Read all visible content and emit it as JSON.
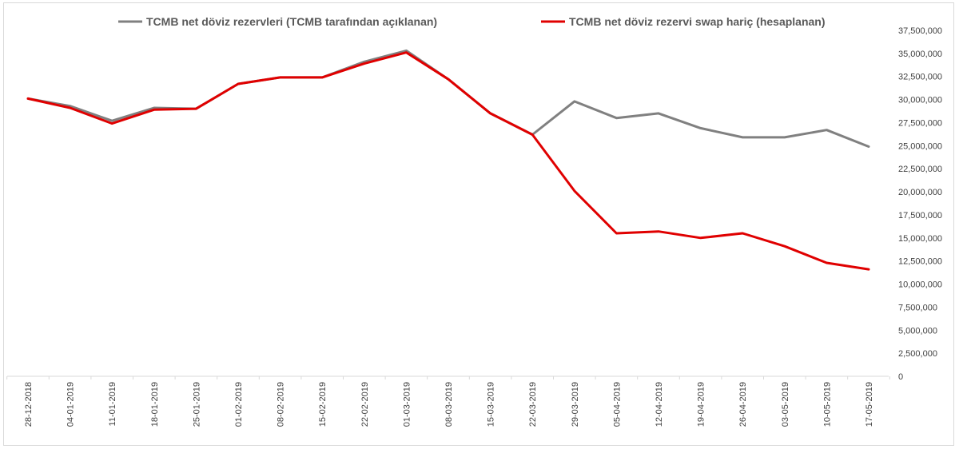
{
  "chart_data": {
    "type": "line",
    "title": "",
    "xlabel": "",
    "ylabel": "",
    "categories": [
      "28-12-2018",
      "04-01-2019",
      "11-01-2019",
      "18-01-2019",
      "25-01-2019",
      "01-02-2019",
      "08-02-2019",
      "15-02-2019",
      "22-02-2019",
      "01-03-2019",
      "08-03-2019",
      "15-03-2019",
      "22-03-2019",
      "29-03-2019",
      "05-04-2019",
      "12-04-2019",
      "19-04-2019",
      "26-04-2019",
      "03-05-2019",
      "10-05-2019",
      "17-05-2019"
    ],
    "series": [
      {
        "name": "TCMB net döviz rezervleri (TCMB tarafından açıklanan)",
        "color": "#808080",
        "values": [
          30100000,
          29300000,
          27700000,
          29100000,
          29000000,
          31700000,
          32400000,
          32400000,
          34100000,
          35300000,
          32200000,
          28500000,
          26200000,
          29800000,
          28000000,
          28500000,
          26900000,
          25900000,
          25900000,
          26700000,
          24900000
        ]
      },
      {
        "name": "TCMB net döviz rezervi swap hariç (hesaplanan)",
        "color": "#e00000",
        "values": [
          30100000,
          29100000,
          27400000,
          28900000,
          29000000,
          31700000,
          32400000,
          32400000,
          33900000,
          35100000,
          32200000,
          28500000,
          26200000,
          20100000,
          15500000,
          15700000,
          15000000,
          15500000,
          14100000,
          12300000,
          11600000
        ]
      }
    ],
    "ylim": [
      0,
      37500000
    ],
    "y_ticks": [
      "0",
      "2,500,000",
      "5,000,000",
      "7,500,000",
      "10,000,000",
      "12,500,000",
      "15,000,000",
      "17,500,000",
      "20,000,000",
      "22,500,000",
      "25,000,000",
      "27,500,000",
      "30,000,000",
      "32,500,000",
      "35,000,000",
      "37,500,000"
    ],
    "y_axis_side": "right",
    "grid": false,
    "legend_position": "top"
  }
}
